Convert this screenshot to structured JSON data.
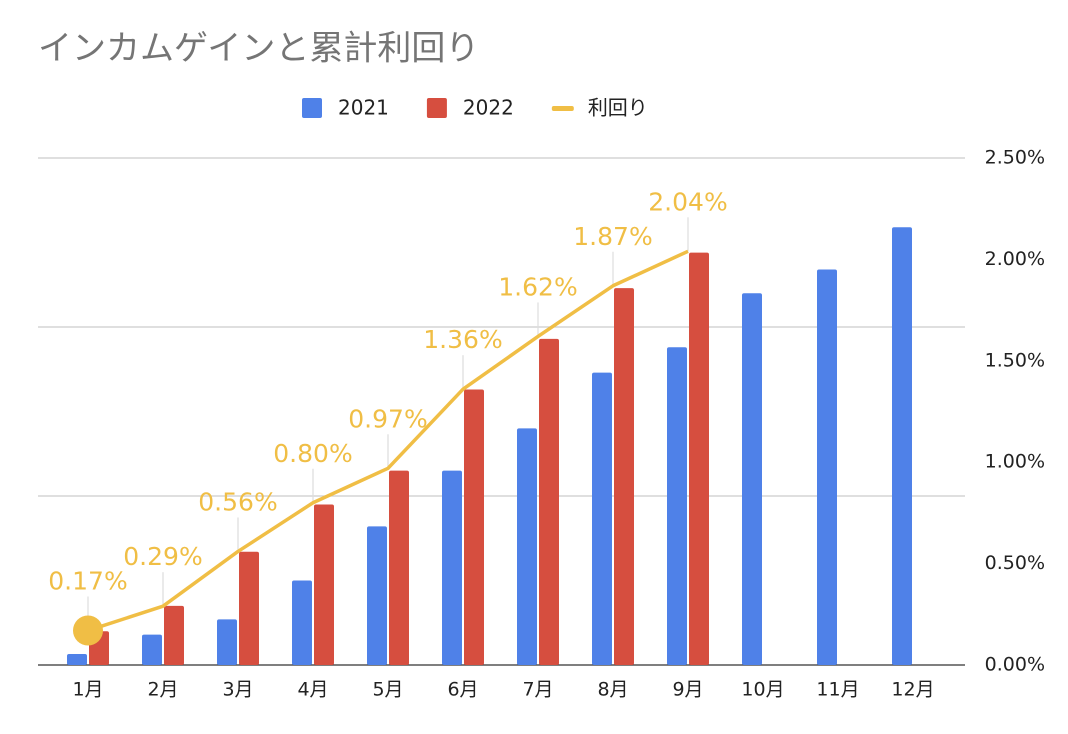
{
  "chart_data": {
    "type": "bar",
    "title": "インカムゲインと累計利回り",
    "categories": [
      "1月",
      "2月",
      "3月",
      "4月",
      "5月",
      "6月",
      "7月",
      "8月",
      "9月",
      "10月",
      "11月",
      "12月"
    ],
    "series": [
      {
        "name": "2021",
        "color": "#4f81e8",
        "values": [
          0.065,
          0.18,
          0.27,
          0.5,
          0.82,
          1.15,
          1.4,
          1.73,
          1.88,
          2.2,
          2.34,
          2.59
        ]
      },
      {
        "name": "2022",
        "color": "#d64e3f",
        "values": [
          0.2,
          0.35,
          0.67,
          0.95,
          1.15,
          1.63,
          1.93,
          2.23,
          2.44,
          null,
          null,
          null
        ]
      },
      {
        "name": "利回り",
        "type": "line",
        "axis": "y2",
        "color": "#f0be45",
        "values": [
          0.17,
          0.29,
          0.56,
          0.8,
          0.97,
          1.36,
          1.62,
          1.87,
          2.04,
          null,
          null,
          null
        ],
        "value_labels": [
          "0.17%",
          "0.29%",
          "0.56%",
          "0.80%",
          "0.97%",
          "1.36%",
          "1.62%",
          "1.87%",
          "2.04%",
          null,
          null,
          null
        ]
      }
    ],
    "ylim": [
      0,
      3
    ],
    "yticks": [
      0,
      1,
      2,
      3
    ],
    "y2lim": [
      0,
      2.5
    ],
    "y2ticks": [
      {
        "value": 0,
        "label": "0.00%"
      },
      {
        "value": 0.5,
        "label": "0.50%"
      },
      {
        "value": 1,
        "label": "1.00%"
      },
      {
        "value": 1.5,
        "label": "1.50%"
      },
      {
        "value": 2,
        "label": "2.00%"
      },
      {
        "value": 2.5,
        "label": "2.50%"
      }
    ],
    "grid": true,
    "legend": "top"
  }
}
